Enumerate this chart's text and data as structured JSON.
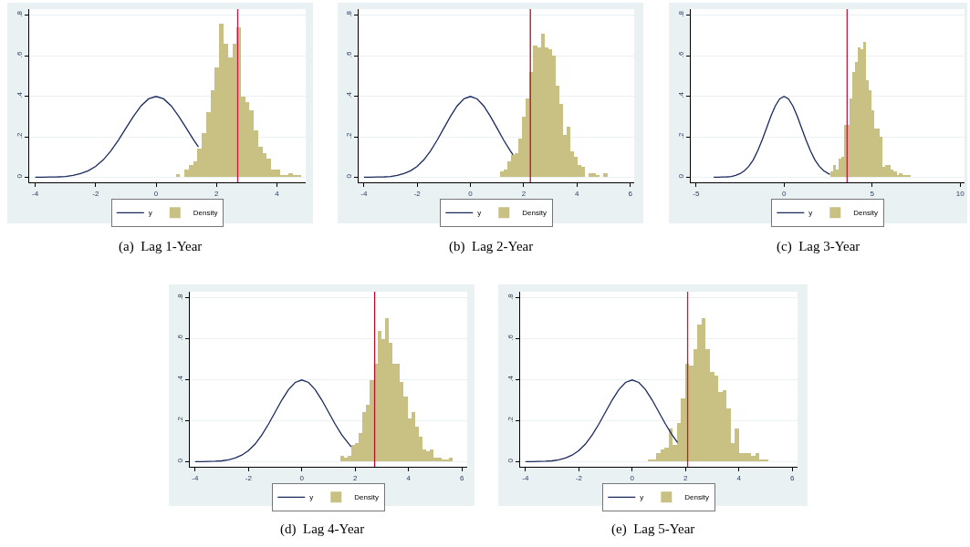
{
  "chart_data": [
    {
      "type": "histogram",
      "title": "(a)  Lag 1-Year",
      "xlim": [
        -4.2,
        4.95
      ],
      "xticks": [
        -4,
        -2,
        0,
        2,
        4
      ],
      "ylim": [
        -0.025,
        0.83
      ],
      "yticks": [
        0,
        {
          "value": 0.2,
          "label": ".2"
        },
        {
          "value": 0.4,
          "label": ".4"
        },
        {
          "value": 0.6,
          "label": ".6"
        },
        {
          "value": 0.8,
          "label": ".8"
        }
      ],
      "grid": "y",
      "legend": "bottom",
      "series": [
        {
          "name": "y",
          "type": "line",
          "color": "#1a2a5e",
          "x": [
            -4,
            -3.75,
            -3.5,
            -3.25,
            -3,
            -2.75,
            -2.5,
            -2.25,
            -2,
            -1.75,
            -1.5,
            -1.25,
            -1,
            -0.75,
            -0.5,
            -0.25,
            0,
            0.25,
            0.5,
            0.75,
            1,
            1.25,
            1.4
          ],
          "values": [
            0.0,
            0.0,
            0.001,
            0.002,
            0.004,
            0.009,
            0.018,
            0.032,
            0.054,
            0.086,
            0.13,
            0.183,
            0.242,
            0.301,
            0.352,
            0.387,
            0.399,
            0.387,
            0.352,
            0.301,
            0.242,
            0.183,
            0.15
          ]
        },
        {
          "name": "Density",
          "color": "#c9c184",
          "bins": [
            0.65,
            0.79,
            0.94,
            1.08,
            1.23,
            1.37,
            1.51,
            1.66,
            1.8,
            1.94,
            2.09,
            2.23,
            2.37,
            2.52,
            2.66,
            2.8,
            2.95,
            3.09,
            3.23,
            3.38,
            3.52,
            3.66,
            3.81,
            3.95,
            4.09,
            4.24,
            4.38,
            4.52,
            4.67,
            4.81
          ],
          "values": [
            0.015,
            0,
            0.04,
            0.06,
            0.08,
            0.14,
            0.22,
            0.32,
            0.43,
            0.54,
            0.76,
            0.66,
            0.59,
            0.66,
            0.74,
            0.4,
            0.37,
            0.33,
            0.23,
            0.15,
            0.12,
            0.09,
            0.04,
            0.04,
            0.01,
            0.01,
            0.02,
            0.01,
            0.01
          ]
        }
      ],
      "ref_lines": [
        {
          "axis": "x",
          "value": 2.7,
          "color": "#d2143c"
        }
      ]
    },
    {
      "type": "histogram",
      "title": "(b)  Lag 2-Year",
      "xlim": [
        -4.2,
        6.15
      ],
      "xticks": [
        -4,
        -2,
        0,
        2,
        4,
        6
      ],
      "ylim": [
        -0.025,
        0.83
      ],
      "yticks": [
        0,
        {
          "value": 0.2,
          "label": ".2"
        },
        {
          "value": 0.4,
          "label": ".4"
        },
        {
          "value": 0.6,
          "label": ".6"
        },
        {
          "value": 0.8,
          "label": ".8"
        }
      ],
      "grid": "y",
      "legend": "bottom",
      "series": [
        {
          "name": "y",
          "type": "line",
          "color": "#1a2a5e",
          "x": [
            -4,
            -3.75,
            -3.5,
            -3.25,
            -3,
            -2.75,
            -2.5,
            -2.25,
            -2,
            -1.75,
            -1.5,
            -1.25,
            -1,
            -0.75,
            -0.5,
            -0.25,
            0,
            0.25,
            0.5,
            0.75,
            1,
            1.25,
            1.5,
            1.6
          ],
          "values": [
            0.0,
            0.0,
            0.001,
            0.002,
            0.004,
            0.009,
            0.018,
            0.032,
            0.054,
            0.086,
            0.13,
            0.183,
            0.242,
            0.301,
            0.352,
            0.387,
            0.399,
            0.387,
            0.352,
            0.301,
            0.242,
            0.183,
            0.13,
            0.111
          ]
        },
        {
          "name": "Density",
          "color": "#c9c184",
          "bins": [
            1.11,
            1.25,
            1.39,
            1.53,
            1.67,
            1.81,
            1.94,
            2.08,
            2.22,
            2.36,
            2.5,
            2.64,
            2.78,
            2.92,
            3.06,
            3.2,
            3.33,
            3.47,
            3.61,
            3.75,
            3.89,
            4.03,
            4.17,
            4.31,
            4.45,
            4.59,
            4.72,
            4.86,
            5.0,
            5.14
          ],
          "values": [
            0.03,
            0.04,
            0.08,
            0.11,
            0.12,
            0.19,
            0.3,
            0.39,
            0.52,
            0.65,
            0.64,
            0.71,
            0.64,
            0.63,
            0.6,
            0.45,
            0.36,
            0.21,
            0.25,
            0.13,
            0.1,
            0.06,
            0.05,
            0,
            0.02,
            0.02,
            0.01,
            0,
            0.02
          ]
        }
      ],
      "ref_lines": [
        {
          "axis": "x",
          "value": 2.25,
          "color": "#b0102e"
        }
      ]
    },
    {
      "type": "histogram",
      "title": "(c)  Lag 3-Year",
      "xlim": [
        -5.3,
        10.25
      ],
      "xticks": [
        -5,
        0,
        5,
        10
      ],
      "ylim": [
        -0.025,
        0.83
      ],
      "yticks": [
        0,
        {
          "value": 0.2,
          "label": ".2"
        },
        {
          "value": 0.4,
          "label": ".4"
        },
        {
          "value": 0.6,
          "label": ".6"
        },
        {
          "value": 0.8,
          "label": ".8"
        }
      ],
      "grid": "y",
      "legend": "bottom",
      "series": [
        {
          "name": "y",
          "type": "line",
          "color": "#1a2a5e",
          "x": [
            -4,
            -3.75,
            -3.5,
            -3.25,
            -3,
            -2.75,
            -2.5,
            -2.25,
            -2,
            -1.75,
            -1.5,
            -1.25,
            -1,
            -0.75,
            -0.5,
            -0.25,
            0,
            0.25,
            0.5,
            0.75,
            1,
            1.25,
            1.5,
            1.75,
            2,
            2.25,
            2.6
          ],
          "values": [
            0.0,
            0.0,
            0.001,
            0.002,
            0.004,
            0.009,
            0.018,
            0.032,
            0.054,
            0.086,
            0.13,
            0.183,
            0.242,
            0.301,
            0.352,
            0.387,
            0.399,
            0.387,
            0.352,
            0.301,
            0.242,
            0.183,
            0.13,
            0.086,
            0.054,
            0.032,
            0.014
          ]
        },
        {
          "name": "Density",
          "color": "#c9c184",
          "bins": [
            2.62,
            2.77,
            2.93,
            3.09,
            3.24,
            3.4,
            3.56,
            3.72,
            3.87,
            4.03,
            4.19,
            4.34,
            4.5,
            4.66,
            4.82,
            4.97,
            5.13,
            5.29,
            5.44,
            5.6,
            5.76,
            5.92,
            6.07,
            6.23,
            6.39,
            6.54,
            6.7,
            6.86,
            7.01,
            7.17
          ],
          "values": [
            0.03,
            0.06,
            0.04,
            0.09,
            0.1,
            0.26,
            0.26,
            0.39,
            0.52,
            0.57,
            0.64,
            0.63,
            0.67,
            0.48,
            0.43,
            0.33,
            0.24,
            0.24,
            0.2,
            0.05,
            0.06,
            0.06,
            0.04,
            0.03,
            0.01,
            0.02,
            0.01,
            0.01,
            0.01
          ]
        }
      ],
      "ref_lines": [
        {
          "axis": "x",
          "value": 3.58,
          "color": "#d2143c"
        }
      ]
    },
    {
      "type": "histogram",
      "title": "(d)  Lag 4-Year",
      "xlim": [
        -4.2,
        6.2
      ],
      "xticks": [
        -4,
        -2,
        0,
        2,
        4,
        6
      ],
      "ylim": [
        -0.025,
        0.83
      ],
      "yticks": [
        0,
        {
          "value": 0.2,
          "label": ".2"
        },
        {
          "value": 0.4,
          "label": ".4"
        },
        {
          "value": 0.6,
          "label": ".6"
        },
        {
          "value": 0.8,
          "label": ".8"
        }
      ],
      "grid": "y",
      "legend": "bottom",
      "series": [
        {
          "name": "y",
          "type": "line",
          "color": "#1a2a5e",
          "x": [
            -4,
            -3.75,
            -3.5,
            -3.25,
            -3,
            -2.75,
            -2.5,
            -2.25,
            -2,
            -1.75,
            -1.5,
            -1.25,
            -1,
            -0.75,
            -0.5,
            -0.25,
            0,
            0.25,
            0.5,
            0.75,
            1,
            1.25,
            1.5,
            1.85
          ],
          "values": [
            0.0,
            0.0,
            0.001,
            0.002,
            0.004,
            0.009,
            0.018,
            0.032,
            0.054,
            0.086,
            0.13,
            0.183,
            0.242,
            0.301,
            0.352,
            0.387,
            0.399,
            0.387,
            0.352,
            0.301,
            0.242,
            0.183,
            0.13,
            0.072
          ]
        },
        {
          "name": "Density",
          "color": "#c9c184",
          "bins": [
            1.43,
            1.57,
            1.71,
            1.85,
            1.99,
            2.13,
            2.27,
            2.41,
            2.55,
            2.7,
            2.84,
            2.98,
            3.12,
            3.26,
            3.4,
            3.54,
            3.68,
            3.82,
            3.96,
            4.1,
            4.24,
            4.38,
            4.52,
            4.66,
            4.8,
            4.95,
            5.09,
            5.23,
            5.37,
            5.51,
            5.65
          ],
          "values": [
            0.03,
            0.02,
            0.03,
            0.08,
            0.09,
            0.14,
            0.24,
            0.28,
            0.4,
            0.48,
            0.64,
            0.6,
            0.7,
            0.58,
            0.48,
            0.48,
            0.39,
            0.32,
            0.21,
            0.24,
            0.17,
            0.12,
            0.06,
            0.05,
            0.06,
            0.02,
            0.02,
            0.01,
            0.01,
            0.02
          ]
        }
      ],
      "ref_lines": [
        {
          "axis": "x",
          "value": 2.73,
          "color": "#b0102e"
        }
      ]
    },
    {
      "type": "histogram",
      "title": "(e)  Lag 5-Year",
      "xlim": [
        -4.2,
        6.2
      ],
      "xticks": [
        -4,
        -2,
        0,
        2,
        4,
        6
      ],
      "ylim": [
        -0.025,
        0.83
      ],
      "yticks": [
        0,
        {
          "value": 0.2,
          "label": ".2"
        },
        {
          "value": 0.4,
          "label": ".4"
        },
        {
          "value": 0.6,
          "label": ".6"
        },
        {
          "value": 0.8,
          "label": ".8"
        }
      ],
      "grid": "y",
      "legend": "bottom",
      "series": [
        {
          "name": "y",
          "type": "line",
          "color": "#1a2a5e",
          "x": [
            -4,
            -3.75,
            -3.5,
            -3.25,
            -3,
            -2.75,
            -2.5,
            -2.25,
            -2,
            -1.75,
            -1.5,
            -1.25,
            -1,
            -0.75,
            -0.5,
            -0.25,
            0,
            0.25,
            0.5,
            0.75,
            1,
            1.25,
            1.5,
            1.7
          ],
          "values": [
            0.0,
            0.0,
            0.001,
            0.002,
            0.004,
            0.009,
            0.018,
            0.032,
            0.054,
            0.086,
            0.13,
            0.183,
            0.242,
            0.301,
            0.352,
            0.387,
            0.399,
            0.387,
            0.352,
            0.301,
            0.242,
            0.183,
            0.13,
            0.094
          ]
        },
        {
          "name": "Density",
          "color": "#c9c184",
          "bins": [
            0.59,
            0.75,
            0.9,
            1.06,
            1.21,
            1.37,
            1.52,
            1.68,
            1.83,
            1.99,
            2.14,
            2.3,
            2.45,
            2.61,
            2.76,
            2.92,
            3.07,
            3.23,
            3.38,
            3.54,
            3.69,
            3.85,
            4.0,
            4.16,
            4.31,
            4.47,
            4.62,
            4.78,
            4.93,
            5.09
          ],
          "values": [
            0.01,
            0.01,
            0.04,
            0.06,
            0.07,
            0.16,
            0.08,
            0.19,
            0.31,
            0.48,
            0.47,
            0.55,
            0.67,
            0.7,
            0.55,
            0.44,
            0.42,
            0.34,
            0.35,
            0.26,
            0.09,
            0.16,
            0.04,
            0.04,
            0.04,
            0.03,
            0.04,
            0.01,
            0.01
          ]
        }
      ],
      "ref_lines": [
        {
          "axis": "x",
          "value": 2.08,
          "color": "#d2143c"
        }
      ]
    }
  ]
}
